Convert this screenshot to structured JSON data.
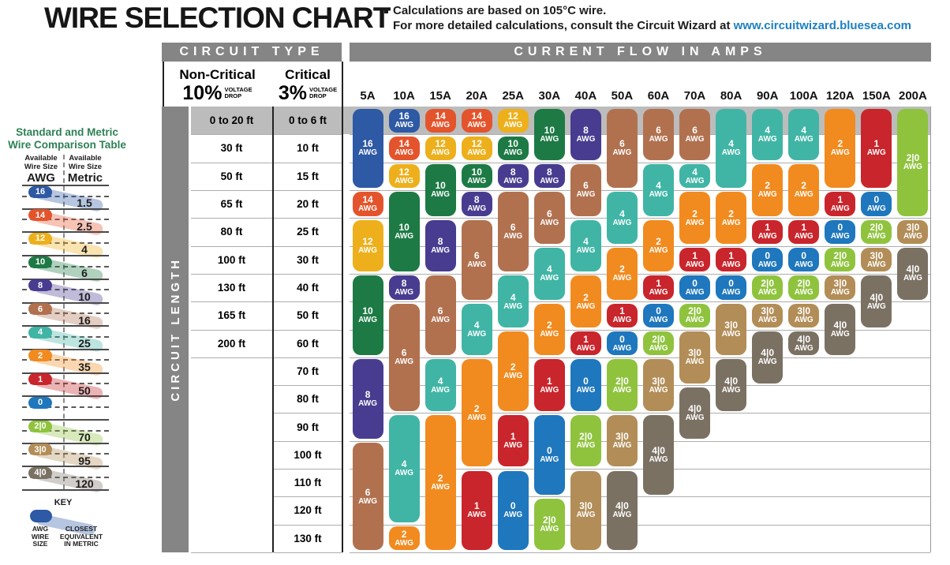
{
  "page": {
    "title": "WIRE SELECTION CHART",
    "note_line1": "Calculations are based on 105°C wire.",
    "note_line2_prefix": "For more detailed calculations, consult the Circuit Wizard at ",
    "note_link": "www.circuitwizard.bluesea.com"
  },
  "header": {
    "circuit_type_label": "CIRCUIT TYPE",
    "current_flow_label": "CURRENT FLOW IN AMPS",
    "non_critical_title": "Non-Critical",
    "non_critical_pct": "10%",
    "critical_title": "Critical",
    "critical_pct": "3%",
    "voltage_drop_lines": [
      "VOLTAGE",
      "DROP"
    ],
    "circuit_length_label": "CIRCUIT LENGTH"
  },
  "sidebar": {
    "title_line1": "Standard and Metric",
    "title_line2": "Wire Comparison Table",
    "left_header_line1": "Available",
    "left_header_line2": "Wire Size",
    "left_header_unit": "AWG",
    "right_header_line1": "Available",
    "right_header_line2": "Wire Size",
    "right_header_unit": "Metric",
    "rows": [
      {
        "awg": "16",
        "metric": "1.5"
      },
      {
        "awg": "14",
        "metric": "2.5"
      },
      {
        "awg": "12",
        "metric": "4"
      },
      {
        "awg": "10",
        "metric": "6"
      },
      {
        "awg": "8",
        "metric": "10"
      },
      {
        "awg": "6",
        "metric": "16"
      },
      {
        "awg": "4",
        "metric": "25"
      },
      {
        "awg": "2",
        "metric": "35"
      },
      {
        "awg": "1",
        "metric": "50"
      },
      {
        "awg": "0",
        "metric": ""
      },
      {
        "awg": "2|0",
        "metric": "70"
      },
      {
        "awg": "3|0",
        "metric": "95"
      },
      {
        "awg": "4|0",
        "metric": "120"
      }
    ],
    "key_title": "KEY",
    "key_awg_lines": [
      "AWG",
      "WIRE",
      "SIZE"
    ],
    "key_metric_lines": [
      "CLOSEST",
      "EQUIVALENT",
      "IN METRIC"
    ]
  },
  "colors": {
    "16": "#2d59a5",
    "14": "#e4542c",
    "12": "#edb01c",
    "10": "#1d7a45",
    "8": "#483c90",
    "6": "#b1714f",
    "4": "#40b5a5",
    "2": "#f18b1f",
    "1": "#c9252c",
    "0": "#1f77bd",
    "2|0": "#8fc33e",
    "3|0": "#b28d57",
    "4|0": "#7b7163",
    "header_gray": "#858585",
    "band_gray": "#bcbcbc",
    "gridline": "#adadad",
    "link_blue": "#1e7fc1",
    "sidebar_green": "#2e8155"
  },
  "chart_data": {
    "type": "table",
    "title": "WIRE SELECTION CHART",
    "note": "Calculations are based on 105°C wire.",
    "x_axis_label": "CURRENT FLOW IN AMPS",
    "y_axis_label": "CIRCUIT LENGTH",
    "amps": [
      "5A",
      "10A",
      "15A",
      "20A",
      "25A",
      "30A",
      "40A",
      "50A",
      "60A",
      "70A",
      "80A",
      "90A",
      "100A",
      "120A",
      "150A",
      "200A"
    ],
    "awg_suffix": "AWG",
    "length_rows": [
      {
        "row": 1,
        "non_critical_10pct": "0 to 20 ft",
        "critical_3pct": "0 to 6 ft"
      },
      {
        "row": 2,
        "non_critical_10pct": "30 ft",
        "critical_3pct": "10 ft"
      },
      {
        "row": 3,
        "non_critical_10pct": "50 ft",
        "critical_3pct": "15 ft"
      },
      {
        "row": 4,
        "non_critical_10pct": "65 ft",
        "critical_3pct": "20 ft"
      },
      {
        "row": 5,
        "non_critical_10pct": "80 ft",
        "critical_3pct": "25 ft"
      },
      {
        "row": 6,
        "non_critical_10pct": "100 ft",
        "critical_3pct": "30 ft"
      },
      {
        "row": 7,
        "non_critical_10pct": "130 ft",
        "critical_3pct": "40 ft"
      },
      {
        "row": 8,
        "non_critical_10pct": "165 ft",
        "critical_3pct": "50 ft"
      },
      {
        "row": 9,
        "non_critical_10pct": "200 ft",
        "critical_3pct": "60 ft"
      },
      {
        "row": 10,
        "non_critical_10pct": "",
        "critical_3pct": "70 ft"
      },
      {
        "row": 11,
        "non_critical_10pct": "",
        "critical_3pct": "80 ft"
      },
      {
        "row": 12,
        "non_critical_10pct": "",
        "critical_3pct": "90 ft"
      },
      {
        "row": 13,
        "non_critical_10pct": "",
        "critical_3pct": "100 ft"
      },
      {
        "row": 14,
        "non_critical_10pct": "",
        "critical_3pct": "110 ft"
      },
      {
        "row": 15,
        "non_critical_10pct": "",
        "critical_3pct": "120 ft"
      },
      {
        "row": 16,
        "non_critical_10pct": "",
        "critical_3pct": "130 ft"
      }
    ],
    "columns": [
      {
        "amp": "5A",
        "segments": [
          {
            "awg": "16",
            "from": 1,
            "to": 3
          },
          {
            "awg": "14",
            "from": 4,
            "to": 4
          },
          {
            "awg": "12",
            "from": 5,
            "to": 6
          },
          {
            "awg": "10",
            "from": 7,
            "to": 9
          },
          {
            "awg": "8",
            "from": 10,
            "to": 12
          },
          {
            "awg": "6",
            "from": 13,
            "to": 16
          }
        ]
      },
      {
        "amp": "10A",
        "segments": [
          {
            "awg": "16",
            "from": 1,
            "to": 1
          },
          {
            "awg": "14",
            "from": 2,
            "to": 2
          },
          {
            "awg": "12",
            "from": 3,
            "to": 3
          },
          {
            "awg": "10",
            "from": 4,
            "to": 6
          },
          {
            "awg": "8",
            "from": 7,
            "to": 7
          },
          {
            "awg": "6",
            "from": 8,
            "to": 11
          },
          {
            "awg": "4",
            "from": 12,
            "to": 15
          },
          {
            "awg": "2",
            "from": 16,
            "to": 16
          }
        ]
      },
      {
        "amp": "15A",
        "segments": [
          {
            "awg": "14",
            "from": 1,
            "to": 1
          },
          {
            "awg": "12",
            "from": 2,
            "to": 2
          },
          {
            "awg": "10",
            "from": 3,
            "to": 4
          },
          {
            "awg": "8",
            "from": 5,
            "to": 6
          },
          {
            "awg": "6",
            "from": 7,
            "to": 9
          },
          {
            "awg": "4",
            "from": 10,
            "to": 11
          },
          {
            "awg": "2",
            "from": 12,
            "to": 16
          }
        ]
      },
      {
        "amp": "20A",
        "segments": [
          {
            "awg": "14",
            "from": 1,
            "to": 1
          },
          {
            "awg": "12",
            "from": 2,
            "to": 2
          },
          {
            "awg": "10",
            "from": 3,
            "to": 3
          },
          {
            "awg": "8",
            "from": 4,
            "to": 4
          },
          {
            "awg": "6",
            "from": 5,
            "to": 7
          },
          {
            "awg": "4",
            "from": 8,
            "to": 9
          },
          {
            "awg": "2",
            "from": 10,
            "to": 13
          },
          {
            "awg": "1",
            "from": 14,
            "to": 16
          }
        ]
      },
      {
        "amp": "25A",
        "segments": [
          {
            "awg": "12",
            "from": 1,
            "to": 1
          },
          {
            "awg": "10",
            "from": 2,
            "to": 2
          },
          {
            "awg": "8",
            "from": 3,
            "to": 3
          },
          {
            "awg": "6",
            "from": 4,
            "to": 6
          },
          {
            "awg": "4",
            "from": 7,
            "to": 8
          },
          {
            "awg": "2",
            "from": 9,
            "to": 11
          },
          {
            "awg": "1",
            "from": 12,
            "to": 13
          },
          {
            "awg": "0",
            "from": 14,
            "to": 16
          }
        ]
      },
      {
        "amp": "30A",
        "segments": [
          {
            "awg": "10",
            "from": 1,
            "to": 2
          },
          {
            "awg": "8",
            "from": 3,
            "to": 3
          },
          {
            "awg": "6",
            "from": 4,
            "to": 5
          },
          {
            "awg": "4",
            "from": 6,
            "to": 7
          },
          {
            "awg": "2",
            "from": 8,
            "to": 9
          },
          {
            "awg": "1",
            "from": 10,
            "to": 11
          },
          {
            "awg": "0",
            "from": 12,
            "to": 14
          },
          {
            "awg": "2|0",
            "from": 15,
            "to": 16
          }
        ]
      },
      {
        "amp": "40A",
        "segments": [
          {
            "awg": "8",
            "from": 1,
            "to": 2
          },
          {
            "awg": "6",
            "from": 3,
            "to": 4
          },
          {
            "awg": "4",
            "from": 5,
            "to": 6
          },
          {
            "awg": "2",
            "from": 7,
            "to": 8
          },
          {
            "awg": "1",
            "from": 9,
            "to": 9
          },
          {
            "awg": "0",
            "from": 10,
            "to": 11
          },
          {
            "awg": "2|0",
            "from": 12,
            "to": 13
          },
          {
            "awg": "3|0",
            "from": 14,
            "to": 16
          }
        ]
      },
      {
        "amp": "50A",
        "segments": [
          {
            "awg": "6",
            "from": 1,
            "to": 3
          },
          {
            "awg": "4",
            "from": 4,
            "to": 5
          },
          {
            "awg": "2",
            "from": 6,
            "to": 7
          },
          {
            "awg": "1",
            "from": 8,
            "to": 8
          },
          {
            "awg": "0",
            "from": 9,
            "to": 9
          },
          {
            "awg": "2|0",
            "from": 10,
            "to": 11
          },
          {
            "awg": "3|0",
            "from": 12,
            "to": 13
          },
          {
            "awg": "4|0",
            "from": 14,
            "to": 16
          }
        ]
      },
      {
        "amp": "60A",
        "segments": [
          {
            "awg": "6",
            "from": 1,
            "to": 2
          },
          {
            "awg": "4",
            "from": 3,
            "to": 4
          },
          {
            "awg": "2",
            "from": 5,
            "to": 6
          },
          {
            "awg": "1",
            "from": 7,
            "to": 7
          },
          {
            "awg": "0",
            "from": 8,
            "to": 8
          },
          {
            "awg": "2|0",
            "from": 9,
            "to": 9
          },
          {
            "awg": "3|0",
            "from": 10,
            "to": 11
          },
          {
            "awg": "4|0",
            "from": 12,
            "to": 14
          }
        ]
      },
      {
        "amp": "70A",
        "segments": [
          {
            "awg": "6",
            "from": 1,
            "to": 2
          },
          {
            "awg": "4",
            "from": 3,
            "to": 3
          },
          {
            "awg": "2",
            "from": 4,
            "to": 5
          },
          {
            "awg": "1",
            "from": 6,
            "to": 6
          },
          {
            "awg": "0",
            "from": 7,
            "to": 7
          },
          {
            "awg": "2|0",
            "from": 8,
            "to": 8
          },
          {
            "awg": "3|0",
            "from": 9,
            "to": 10
          },
          {
            "awg": "4|0",
            "from": 11,
            "to": 12
          }
        ]
      },
      {
        "amp": "80A",
        "segments": [
          {
            "awg": "4",
            "from": 1,
            "to": 3
          },
          {
            "awg": "2",
            "from": 4,
            "to": 5
          },
          {
            "awg": "1",
            "from": 6,
            "to": 6
          },
          {
            "awg": "0",
            "from": 7,
            "to": 7
          },
          {
            "awg": "3|0",
            "from": 8,
            "to": 9
          },
          {
            "awg": "4|0",
            "from": 10,
            "to": 11
          }
        ]
      },
      {
        "amp": "90A",
        "segments": [
          {
            "awg": "4",
            "from": 1,
            "to": 2
          },
          {
            "awg": "2",
            "from": 3,
            "to": 4
          },
          {
            "awg": "1",
            "from": 5,
            "to": 5
          },
          {
            "awg": "0",
            "from": 6,
            "to": 6
          },
          {
            "awg": "2|0",
            "from": 7,
            "to": 7
          },
          {
            "awg": "3|0",
            "from": 8,
            "to": 8
          },
          {
            "awg": "4|0",
            "from": 9,
            "to": 10
          }
        ]
      },
      {
        "amp": "100A",
        "segments": [
          {
            "awg": "4",
            "from": 1,
            "to": 2
          },
          {
            "awg": "2",
            "from": 3,
            "to": 4
          },
          {
            "awg": "1",
            "from": 5,
            "to": 5
          },
          {
            "awg": "0",
            "from": 6,
            "to": 6
          },
          {
            "awg": "2|0",
            "from": 7,
            "to": 7
          },
          {
            "awg": "3|0",
            "from": 8,
            "to": 8
          },
          {
            "awg": "4|0",
            "from": 9,
            "to": 9
          }
        ]
      },
      {
        "amp": "120A",
        "segments": [
          {
            "awg": "2",
            "from": 1,
            "to": 3
          },
          {
            "awg": "1",
            "from": 4,
            "to": 4
          },
          {
            "awg": "0",
            "from": 5,
            "to": 5
          },
          {
            "awg": "2|0",
            "from": 6,
            "to": 6
          },
          {
            "awg": "3|0",
            "from": 7,
            "to": 7
          },
          {
            "awg": "4|0",
            "from": 8,
            "to": 9
          }
        ]
      },
      {
        "amp": "150A",
        "segments": [
          {
            "awg": "1",
            "from": 1,
            "to": 3
          },
          {
            "awg": "0",
            "from": 4,
            "to": 4
          },
          {
            "awg": "2|0",
            "from": 5,
            "to": 5
          },
          {
            "awg": "3|0",
            "from": 6,
            "to": 6
          },
          {
            "awg": "4|0",
            "from": 7,
            "to": 8
          }
        ]
      },
      {
        "amp": "200A",
        "segments": [
          {
            "awg": "2|0",
            "from": 1,
            "to": 4
          },
          {
            "awg": "3|0",
            "from": 5,
            "to": 5
          },
          {
            "awg": "4|0",
            "from": 6,
            "to": 7
          }
        ]
      }
    ]
  }
}
